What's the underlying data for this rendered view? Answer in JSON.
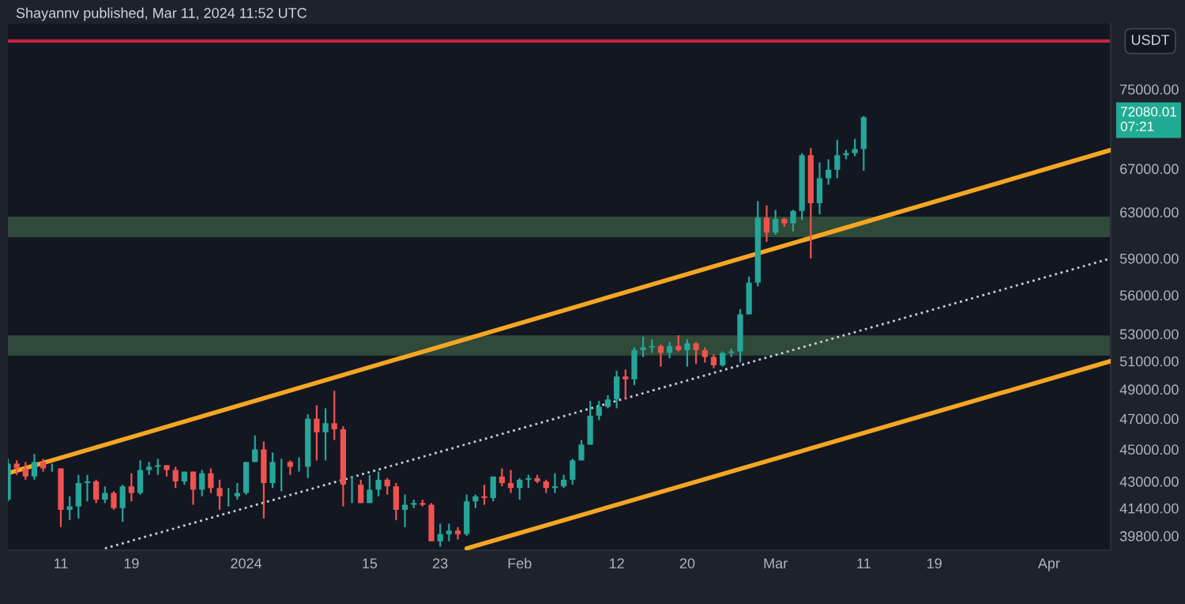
{
  "chart_data": {
    "type": "candlestick",
    "title": "Shayannv published, Mar 11, 2024 11:52 UTC",
    "x": [
      "2023-12-05",
      "2023-12-06",
      "2023-12-07",
      "2023-12-08",
      "2023-12-09",
      "2023-12-10",
      "2023-12-11",
      "2023-12-12",
      "2023-12-13",
      "2023-12-14",
      "2023-12-15",
      "2023-12-16",
      "2023-12-17",
      "2023-12-18",
      "2023-12-19",
      "2023-12-20",
      "2023-12-21",
      "2023-12-22",
      "2023-12-23",
      "2023-12-24",
      "2023-12-25",
      "2023-12-26",
      "2023-12-27",
      "2023-12-28",
      "2023-12-29",
      "2023-12-30",
      "2023-12-31",
      "2024-01-01",
      "2024-01-02",
      "2024-01-03",
      "2024-01-04",
      "2024-01-05",
      "2024-01-06",
      "2024-01-07",
      "2024-01-08",
      "2024-01-09",
      "2024-01-10",
      "2024-01-11",
      "2024-01-12",
      "2024-01-13",
      "2024-01-14",
      "2024-01-15",
      "2024-01-16",
      "2024-01-17",
      "2024-01-18",
      "2024-01-19",
      "2024-01-20",
      "2024-01-21",
      "2024-01-22",
      "2024-01-23",
      "2024-01-24",
      "2024-01-25",
      "2024-01-26",
      "2024-01-27",
      "2024-01-28",
      "2024-01-29",
      "2024-01-30",
      "2024-01-31",
      "2024-02-01",
      "2024-02-02",
      "2024-02-03",
      "2024-02-04",
      "2024-02-05",
      "2024-02-06",
      "2024-02-07",
      "2024-02-08",
      "2024-02-09",
      "2024-02-10",
      "2024-02-11",
      "2024-02-12",
      "2024-02-13",
      "2024-02-14",
      "2024-02-15",
      "2024-02-16",
      "2024-02-17",
      "2024-02-18",
      "2024-02-19",
      "2024-02-20",
      "2024-02-21",
      "2024-02-22",
      "2024-02-23",
      "2024-02-24",
      "2024-02-25",
      "2024-02-26",
      "2024-02-27",
      "2024-02-28",
      "2024-02-29",
      "2024-03-01",
      "2024-03-02",
      "2024-03-03",
      "2024-03-04",
      "2024-03-05",
      "2024-03-06",
      "2024-03-07",
      "2024-03-08",
      "2024-03-09",
      "2024-03-10",
      "2024-03-11"
    ],
    "ohlc": [
      [
        41900,
        44400,
        41800,
        44100
      ],
      [
        44100,
        44300,
        43400,
        43800
      ],
      [
        43800,
        44200,
        43100,
        43300
      ],
      [
        43300,
        44700,
        43100,
        44200
      ],
      [
        44200,
        44400,
        43600,
        43800
      ],
      [
        43800,
        44100,
        43600,
        43800
      ],
      [
        43800,
        43800,
        40300,
        41300
      ],
      [
        41300,
        42100,
        40700,
        41500
      ],
      [
        41500,
        43400,
        40800,
        42900
      ],
      [
        42900,
        43400,
        41800,
        43000
      ],
      [
        43000,
        43100,
        41700,
        41900
      ],
      [
        41900,
        42700,
        41700,
        42300
      ],
      [
        42300,
        42400,
        41300,
        41400
      ],
      [
        41400,
        42800,
        40600,
        42700
      ],
      [
        42700,
        43500,
        41800,
        42300
      ],
      [
        42300,
        44300,
        42200,
        43700
      ],
      [
        43700,
        44200,
        43400,
        43900
      ],
      [
        43900,
        44400,
        43400,
        44000
      ],
      [
        44000,
        44000,
        43300,
        43700
      ],
      [
        43700,
        43900,
        42600,
        43000
      ],
      [
        43000,
        43600,
        42800,
        43600
      ],
      [
        43600,
        43600,
        41600,
        42500
      ],
      [
        42500,
        43700,
        42100,
        43500
      ],
      [
        43500,
        43800,
        42300,
        42600
      ],
      [
        42600,
        43100,
        41300,
        42100
      ],
      [
        42100,
        42600,
        41500,
        42100
      ],
      [
        42100,
        42900,
        41900,
        42300
      ],
      [
        42300,
        44200,
        42200,
        44200
      ],
      [
        44200,
        45900,
        44200,
        45000
      ],
      [
        45000,
        45500,
        40800,
        42900
      ],
      [
        42900,
        44800,
        42600,
        44200
      ],
      [
        44200,
        44400,
        42400,
        44200
      ],
      [
        44200,
        44300,
        43400,
        43900
      ],
      [
        43900,
        44500,
        43600,
        43900
      ],
      [
        43900,
        47300,
        43200,
        47000
      ],
      [
        47000,
        47900,
        44300,
        46100
      ],
      [
        46100,
        47700,
        44300,
        46700
      ],
      [
        46700,
        48900,
        45600,
        46300
      ],
      [
        46300,
        46500,
        41500,
        42800
      ],
      [
        42800,
        43300,
        41700,
        42800
      ],
      [
        42800,
        43100,
        41700,
        41700
      ],
      [
        41700,
        43400,
        41700,
        42500
      ],
      [
        42500,
        43600,
        42100,
        43100
      ],
      [
        43100,
        43200,
        42200,
        42700
      ],
      [
        42700,
        42900,
        40700,
        41300
      ],
      [
        41300,
        42200,
        40300,
        41600
      ],
      [
        41600,
        41900,
        41400,
        41700
      ],
      [
        41700,
        41900,
        41500,
        41600
      ],
      [
        41600,
        41700,
        39500,
        39500
      ],
      [
        39500,
        40500,
        39200,
        39900
      ],
      [
        39900,
        40500,
        39500,
        40100
      ],
      [
        40100,
        40300,
        39600,
        39900
      ],
      [
        39900,
        42200,
        39800,
        41800
      ],
      [
        41800,
        42200,
        41400,
        42100
      ],
      [
        42100,
        42800,
        41600,
        42000
      ],
      [
        42000,
        43300,
        41800,
        43300
      ],
      [
        43300,
        43800,
        42700,
        42900
      ],
      [
        42900,
        43700,
        42300,
        42600
      ],
      [
        42600,
        43200,
        41900,
        43100
      ],
      [
        43100,
        43400,
        42600,
        43200
      ],
      [
        43200,
        43400,
        42900,
        43000
      ],
      [
        43000,
        43100,
        42300,
        42600
      ],
      [
        42600,
        43500,
        42300,
        42700
      ],
      [
        42700,
        43400,
        42600,
        43100
      ],
      [
        43100,
        44400,
        42800,
        44300
      ],
      [
        44300,
        45600,
        44300,
        45300
      ],
      [
        45300,
        48200,
        45300,
        47200
      ],
      [
        47200,
        48200,
        46900,
        47800
      ],
      [
        47800,
        48600,
        47700,
        48300
      ],
      [
        48300,
        50300,
        47700,
        49900
      ],
      [
        49900,
        50400,
        48300,
        49700
      ],
      [
        49700,
        52000,
        49300,
        51800
      ],
      [
        51800,
        52800,
        51300,
        52000
      ],
      [
        52000,
        52600,
        51600,
        52100
      ],
      [
        52100,
        52200,
        50600,
        51600
      ],
      [
        51600,
        52400,
        51200,
        52100
      ],
      [
        52100,
        52900,
        51700,
        51800
      ],
      [
        51800,
        52600,
        50600,
        52300
      ],
      [
        52300,
        52400,
        50800,
        51800
      ],
      [
        51800,
        52000,
        50900,
        51300
      ],
      [
        51300,
        51500,
        50500,
        50700
      ],
      [
        50700,
        51700,
        50600,
        51600
      ],
      [
        51600,
        51900,
        51300,
        51700
      ],
      [
        51700,
        54900,
        50900,
        54500
      ],
      [
        54500,
        57500,
        54500,
        57000
      ],
      [
        57000,
        64000,
        56700,
        62500
      ],
      [
        62500,
        63600,
        60400,
        61200
      ],
      [
        61200,
        63200,
        61000,
        62400
      ],
      [
        62400,
        62500,
        61700,
        62000
      ],
      [
        62000,
        63200,
        61300,
        63100
      ],
      [
        63100,
        68500,
        62300,
        68300
      ],
      [
        68300,
        69000,
        59000,
        63800
      ],
      [
        63800,
        67600,
        62800,
        66100
      ],
      [
        66100,
        67900,
        65500,
        66900
      ],
      [
        66900,
        69800,
        66100,
        68300
      ],
      [
        68300,
        68800,
        67900,
        68500
      ],
      [
        68500,
        69900,
        68200,
        68900
      ],
      [
        68900,
        72200,
        66800,
        72080.01
      ]
    ],
    "series": [
      {
        "type": "line",
        "color": "#f5a623",
        "line_style": "solid",
        "x": [
          "2023-12-05",
          "2024-04-08"
        ],
        "values": [
          43500,
          68800
        ]
      },
      {
        "type": "line",
        "color": "#f5a623",
        "line_style": "solid",
        "x": [
          "2024-01-26",
          "2024-04-08"
        ],
        "values": [
          39100,
          51000
        ]
      },
      {
        "type": "line",
        "color": "#c8ccd4",
        "line_style": "dotted",
        "x": [
          "2023-12-16",
          "2024-04-08"
        ],
        "values": [
          39100,
          59000
        ]
      }
    ],
    "ref_lines": [
      {
        "axis": "y",
        "value": 80300,
        "color": "#c2243f",
        "line_style": "solid"
      }
    ],
    "bands": [
      {
        "axis": "y",
        "from": 60800,
        "to": 62600,
        "color": "#2f4a38"
      },
      {
        "axis": "y",
        "from": 51400,
        "to": 52900,
        "color": "#2f4a38"
      }
    ],
    "annotations": [
      "USDT",
      "72080.01\n07:21"
    ],
    "log": "y",
    "grid": false,
    "xlim": [
      "2023-12-05",
      "2024-04-08"
    ],
    "xticks": [
      {
        "value": "2023-12-11",
        "label": "11"
      },
      {
        "value": "2023-12-19",
        "label": "19"
      },
      {
        "value": "2024-01-01",
        "label": "2024"
      },
      {
        "value": "2024-01-15",
        "label": "15"
      },
      {
        "value": "2024-01-23",
        "label": "23"
      },
      {
        "value": "2024-02-01",
        "label": "Feb"
      },
      {
        "value": "2024-02-12",
        "label": "12"
      },
      {
        "value": "2024-02-20",
        "label": "20"
      },
      {
        "value": "2024-03-01",
        "label": "Mar"
      },
      {
        "value": "2024-03-11",
        "label": "11"
      },
      {
        "value": "2024-03-19",
        "label": "19"
      },
      {
        "value": "2024-04-01",
        "label": "Apr"
      }
    ],
    "ylim": [
      39000,
      82300
    ],
    "yticks": [
      {
        "value": 39800,
        "label": "39800.00"
      },
      {
        "value": 41400,
        "label": "41400.00"
      },
      {
        "value": 43000,
        "label": "43000.00"
      },
      {
        "value": 45000,
        "label": "45000.00"
      },
      {
        "value": 47000,
        "label": "47000.00"
      },
      {
        "value": 49000,
        "label": "49000.00"
      },
      {
        "value": 51000,
        "label": "51000.00"
      },
      {
        "value": 53000,
        "label": "53000.00"
      },
      {
        "value": 56000,
        "label": "56000.00"
      },
      {
        "value": 59000,
        "label": "59000.00"
      },
      {
        "value": 63000,
        "label": "63000.00"
      },
      {
        "value": 67000,
        "label": "67000.00"
      },
      {
        "value": 75000,
        "label": "75000.00"
      }
    ]
  }
}
